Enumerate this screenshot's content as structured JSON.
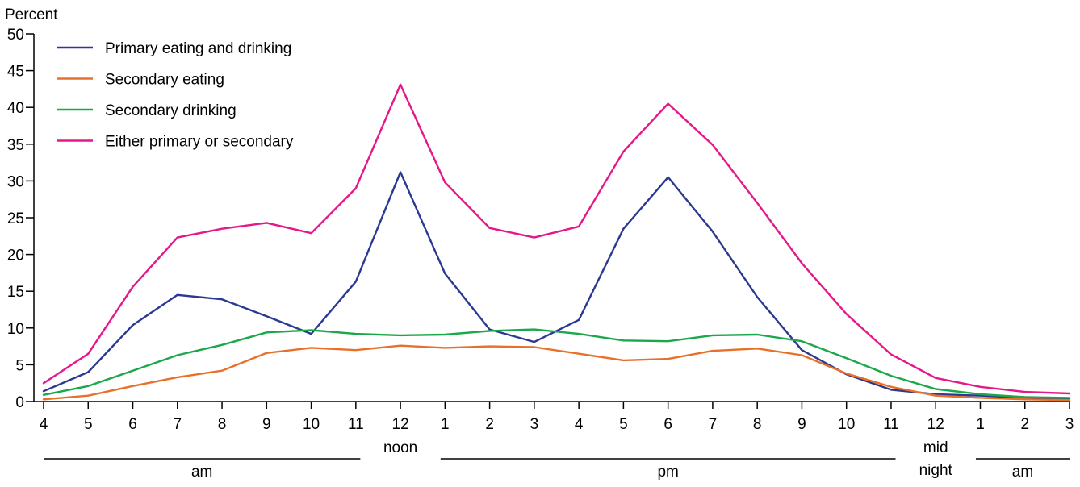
{
  "chart_data": {
    "type": "line",
    "ylabel": "Percent",
    "ylim": [
      0,
      50
    ],
    "yticks": [
      0,
      5,
      10,
      15,
      20,
      25,
      30,
      35,
      40,
      45,
      50
    ],
    "categories": [
      "4",
      "5",
      "6",
      "7",
      "8",
      "9",
      "10",
      "11",
      "12",
      "1",
      "2",
      "3",
      "4",
      "5",
      "6",
      "7",
      "8",
      "9",
      "10",
      "11",
      "12",
      "1",
      "2",
      "3"
    ],
    "period_labels": [
      {
        "text": "am",
        "lines": [
          "am"
        ],
        "from": 0,
        "to": 7,
        "rule": true
      },
      {
        "text": "noon",
        "lines": [
          "noon"
        ],
        "from": 8,
        "to": 8,
        "rule": false
      },
      {
        "text": "pm",
        "lines": [
          "pm"
        ],
        "from": 9,
        "to": 19,
        "rule": true
      },
      {
        "text": "mid night",
        "lines": [
          "mid",
          "night"
        ],
        "from": 20,
        "to": 20,
        "rule": false
      },
      {
        "text": "am",
        "lines": [
          "am"
        ],
        "from": 21,
        "to": 23,
        "rule": true
      }
    ],
    "legend_position": "top-left",
    "grid": false,
    "series": [
      {
        "name": "Primary eating and drinking",
        "color": "#2b3990",
        "values": [
          1.4,
          4.0,
          10.4,
          14.5,
          13.9,
          11.6,
          9.2,
          16.3,
          31.2,
          17.4,
          9.8,
          8.1,
          11.1,
          23.5,
          30.5,
          23.1,
          14.2,
          7.0,
          3.7,
          1.6,
          1.0,
          0.8,
          0.5,
          0.4
        ]
      },
      {
        "name": "Secondary eating",
        "color": "#e8702a",
        "values": [
          0.3,
          0.8,
          2.1,
          3.3,
          4.2,
          6.6,
          7.3,
          7.0,
          7.6,
          7.3,
          7.5,
          7.4,
          6.5,
          5.6,
          5.8,
          6.9,
          7.2,
          6.3,
          3.8,
          2.0,
          0.8,
          0.5,
          0.3,
          0.2
        ]
      },
      {
        "name": "Secondary drinking",
        "color": "#1ba84a",
        "values": [
          0.9,
          2.1,
          4.2,
          6.3,
          7.7,
          9.4,
          9.7,
          9.2,
          9.0,
          9.1,
          9.6,
          9.8,
          9.2,
          8.3,
          8.2,
          9.0,
          9.1,
          8.2,
          5.9,
          3.5,
          1.7,
          1.0,
          0.6,
          0.5
        ]
      },
      {
        "name": "Either primary or secondary",
        "color": "#e5178b",
        "values": [
          2.5,
          6.5,
          15.6,
          22.3,
          23.5,
          24.3,
          22.9,
          29.0,
          43.1,
          29.8,
          23.6,
          22.3,
          23.8,
          34.0,
          40.5,
          34.9,
          27.0,
          18.8,
          11.9,
          6.4,
          3.2,
          2.0,
          1.3,
          1.1
        ]
      }
    ]
  }
}
